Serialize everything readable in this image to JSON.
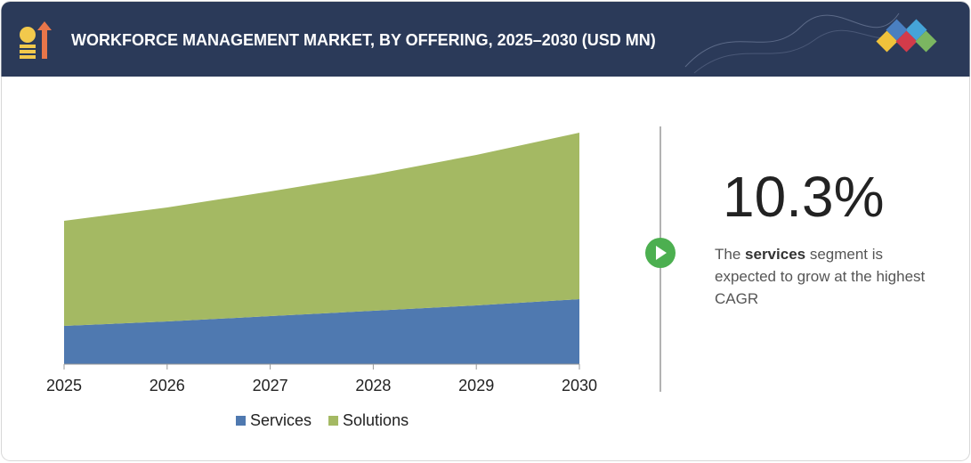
{
  "header": {
    "title": "WORKFORCE MANAGEMENT MARKET, BY OFFERING, 2025–2030 (USD MN)"
  },
  "chart_data": {
    "type": "stacked-area",
    "categories": [
      "2025",
      "2026",
      "2027",
      "2028",
      "2029",
      "2030"
    ],
    "series": [
      {
        "name": "Services",
        "color": "#4f79b0",
        "values": [
          43,
          48,
          54,
          60,
          66,
          73
        ]
      },
      {
        "name": "Solutions",
        "color": "#a4b963",
        "values": [
          118,
          128,
          140,
          153,
          169,
          187
        ]
      }
    ],
    "ylim": [
      0,
      260
    ]
  },
  "callout": {
    "value": "10.3%",
    "text_before": "The ",
    "text_bold": "services",
    "text_after": " segment is expected to grow at the highest CAGR"
  }
}
